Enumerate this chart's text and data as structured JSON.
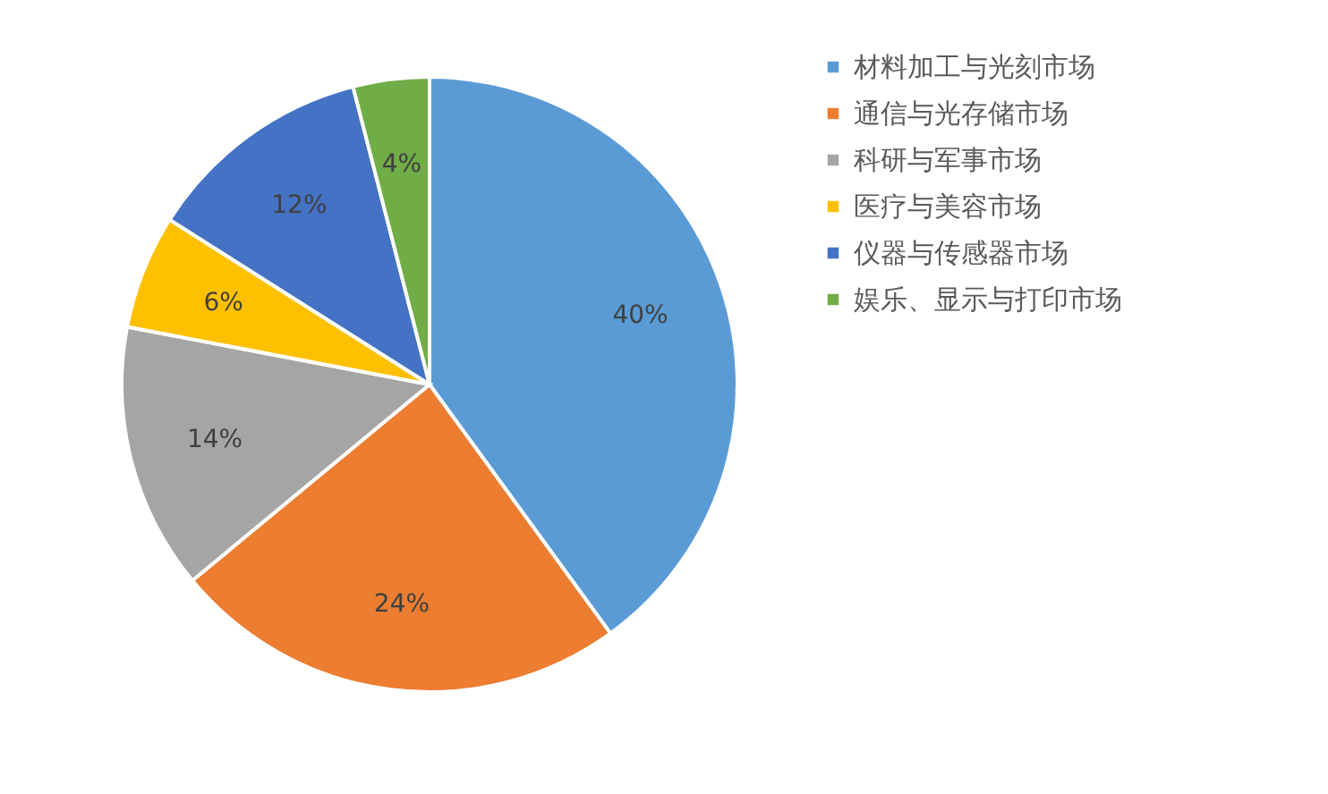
{
  "chart_data": {
    "type": "pie",
    "categories": [
      "材料加工与光刻市场",
      "通信与光存储市场",
      "科研与军事市场",
      "医疗与美容市场",
      "仪器与传感器市场",
      "娱乐、显示与打印市场"
    ],
    "values": [
      40,
      24,
      14,
      6,
      12,
      4
    ],
    "colors": [
      "#5b9bd5",
      "#ed7d31",
      "#a5a5a5",
      "#ffc000",
      "#4472c4",
      "#70ad47"
    ],
    "value_labels": [
      "40%",
      "24%",
      "14%",
      "6%",
      "12%",
      "4%"
    ],
    "legend": "right"
  }
}
